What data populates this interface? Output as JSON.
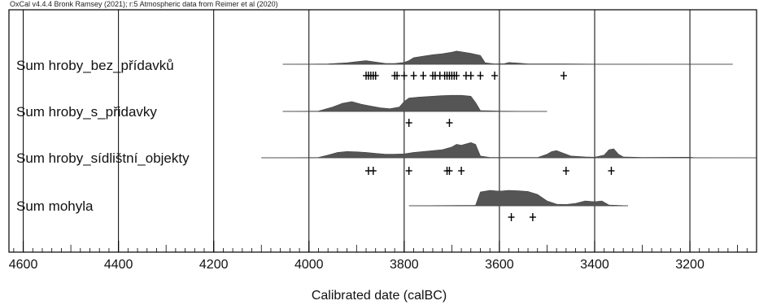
{
  "header": {
    "credit": "OxCal v4.4.4 Bronk Ramsey (2021); r:5 Atmospheric data from Reimer et al (2020)"
  },
  "chart_data": {
    "type": "area",
    "xlabel": "Calibrated date (calBC)",
    "x_reversed": true,
    "xlim": [
      4630,
      3060
    ],
    "major_ticks": [
      4600,
      4400,
      4200,
      4000,
      3800,
      3600,
      3400,
      3200
    ],
    "minor_tick_step": 20,
    "grid": true,
    "colors": {
      "fill": "#555555",
      "line": "#333333",
      "grid": "#000000"
    },
    "rows": [
      {
        "label": "Sum hroby_bez_přídavků",
        "range": [
          4055,
          3110
        ],
        "density": [
          [
            4055,
            0
          ],
          [
            3960,
            0.02
          ],
          [
            3920,
            0.1
          ],
          [
            3900,
            0.18
          ],
          [
            3880,
            0.25
          ],
          [
            3860,
            0.15
          ],
          [
            3840,
            0.06
          ],
          [
            3820,
            0.05
          ],
          [
            3800,
            0.12
          ],
          [
            3790,
            0.25
          ],
          [
            3780,
            0.45
          ],
          [
            3760,
            0.55
          ],
          [
            3740,
            0.65
          ],
          [
            3720,
            0.72
          ],
          [
            3700,
            0.82
          ],
          [
            3690,
            0.9
          ],
          [
            3680,
            0.85
          ],
          [
            3660,
            0.75
          ],
          [
            3640,
            0.6
          ],
          [
            3630,
            0.1
          ],
          [
            3610,
            0.03
          ],
          [
            3590,
            0.04
          ],
          [
            3580,
            0.12
          ],
          [
            3560,
            0.08
          ],
          [
            3540,
            0.03
          ],
          [
            3500,
            0.02
          ],
          [
            3460,
            0.02
          ],
          [
            3400,
            0.01
          ],
          [
            3300,
            0.005
          ],
          [
            3110,
            0
          ]
        ],
        "dates": [
          3880,
          3875,
          3870,
          3865,
          3860,
          3820,
          3815,
          3800,
          3780,
          3760,
          3740,
          3735,
          3725,
          3715,
          3710,
          3705,
          3700,
          3695,
          3690,
          3670,
          3660,
          3640,
          3610,
          3465
        ]
      },
      {
        "label": "Sum hroby_s_přidavky",
        "range": [
          4055,
          3500
        ],
        "density": [
          [
            4055,
            0
          ],
          [
            3980,
            0.02
          ],
          [
            3950,
            0.25
          ],
          [
            3930,
            0.45
          ],
          [
            3910,
            0.55
          ],
          [
            3890,
            0.4
          ],
          [
            3870,
            0.3
          ],
          [
            3850,
            0.2
          ],
          [
            3830,
            0.15
          ],
          [
            3810,
            0.25
          ],
          [
            3800,
            0.55
          ],
          [
            3790,
            0.75
          ],
          [
            3770,
            0.8
          ],
          [
            3740,
            0.85
          ],
          [
            3720,
            0.88
          ],
          [
            3700,
            0.9
          ],
          [
            3680,
            0.9
          ],
          [
            3660,
            0.85
          ],
          [
            3650,
            0.5
          ],
          [
            3640,
            0.05
          ],
          [
            3600,
            0.02
          ],
          [
            3500,
            0
          ]
        ],
        "dates": [
          3790,
          3705
        ]
      },
      {
        "label": "Sum hroby_sídlištní_objekty",
        "range": [
          4100,
          3060
        ],
        "density": [
          [
            4100,
            0
          ],
          [
            3980,
            0.02
          ],
          [
            3960,
            0.15
          ],
          [
            3940,
            0.3
          ],
          [
            3920,
            0.35
          ],
          [
            3900,
            0.33
          ],
          [
            3880,
            0.3
          ],
          [
            3860,
            0.25
          ],
          [
            3840,
            0.2
          ],
          [
            3820,
            0.2
          ],
          [
            3800,
            0.22
          ],
          [
            3780,
            0.3
          ],
          [
            3760,
            0.35
          ],
          [
            3740,
            0.4
          ],
          [
            3720,
            0.45
          ],
          [
            3700,
            0.6
          ],
          [
            3690,
            0.75
          ],
          [
            3680,
            0.7
          ],
          [
            3660,
            0.85
          ],
          [
            3650,
            0.75
          ],
          [
            3640,
            0.1
          ],
          [
            3620,
            0.02
          ],
          [
            3520,
            0.02
          ],
          [
            3500,
            0.2
          ],
          [
            3490,
            0.35
          ],
          [
            3480,
            0.4
          ],
          [
            3470,
            0.3
          ],
          [
            3450,
            0.1
          ],
          [
            3420,
            0.05
          ],
          [
            3400,
            0.03
          ],
          [
            3380,
            0.15
          ],
          [
            3370,
            0.45
          ],
          [
            3360,
            0.5
          ],
          [
            3350,
            0.2
          ],
          [
            3340,
            0.05
          ],
          [
            3300,
            0.02
          ],
          [
            3200,
            0.03
          ],
          [
            3190,
            0.01
          ],
          [
            3060,
            0
          ]
        ],
        "dates": [
          3875,
          3865,
          3790,
          3710,
          3705,
          3680,
          3460,
          3365
        ]
      },
      {
        "label": "Sum mohyla",
        "range": [
          3790,
          3330
        ],
        "density": [
          [
            3790,
            0
          ],
          [
            3650,
            0.03
          ],
          [
            3640,
            0.85
          ],
          [
            3620,
            0.95
          ],
          [
            3600,
            0.9
          ],
          [
            3580,
            0.95
          ],
          [
            3560,
            0.92
          ],
          [
            3540,
            0.88
          ],
          [
            3520,
            0.7
          ],
          [
            3500,
            0.3
          ],
          [
            3480,
            0.1
          ],
          [
            3460,
            0.08
          ],
          [
            3440,
            0.15
          ],
          [
            3420,
            0.3
          ],
          [
            3400,
            0.25
          ],
          [
            3385,
            0.3
          ],
          [
            3370,
            0.05
          ],
          [
            3330,
            0
          ]
        ],
        "dates": [
          3575,
          3530
        ]
      }
    ]
  }
}
